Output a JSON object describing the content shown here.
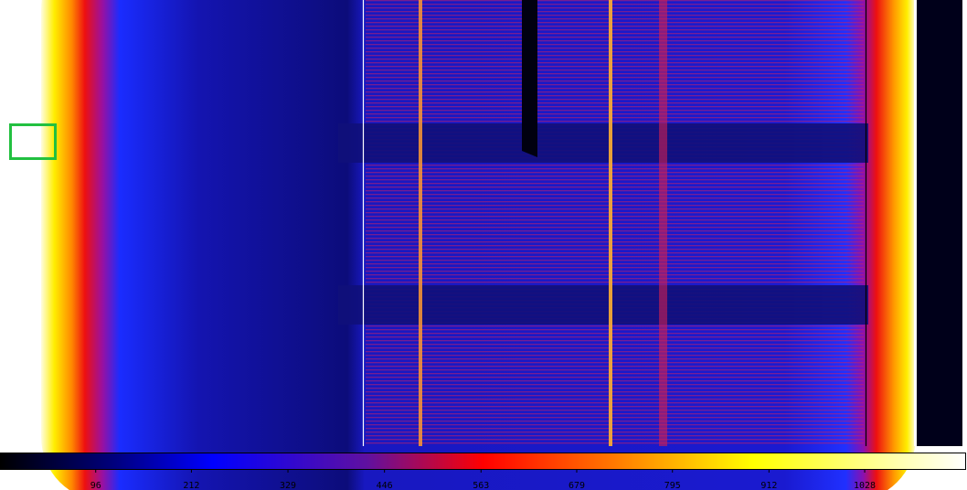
{
  "colorbar": {
    "lim": [
      -20,
      1152
    ],
    "ticks": [
      96,
      212,
      329,
      446,
      563,
      679,
      795,
      912,
      1028
    ]
  }
}
